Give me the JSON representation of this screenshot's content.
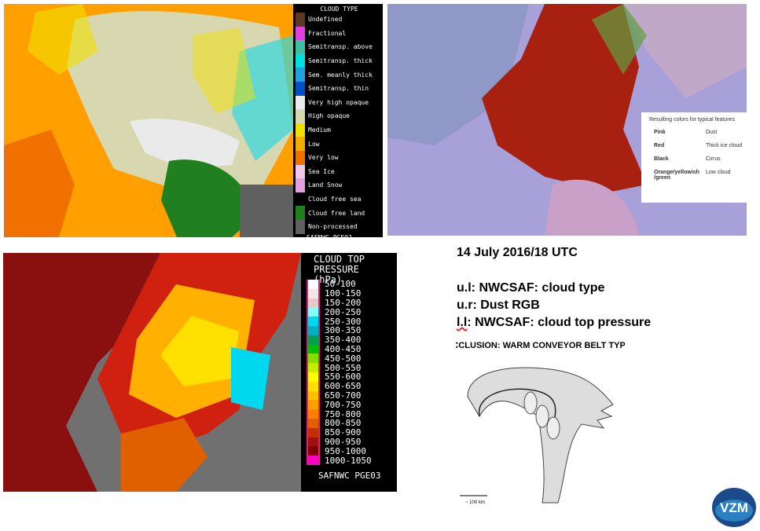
{
  "upper_left": {
    "legend_title": "CLOUD TYPE",
    "items": [
      {
        "label": "Undefined",
        "color": "#5a3a22"
      },
      {
        "label": "Fractional",
        "color": "#e040e0"
      },
      {
        "label": "Semitransp. above",
        "color": "#40c0a0"
      },
      {
        "label": "Semitransp. thick",
        "color": "#00e0e0"
      },
      {
        "label": "Sem. meanly thick",
        "color": "#20a0e0"
      },
      {
        "label": "Semitransp. thin",
        "color": "#0050c8"
      },
      {
        "label": "Very high opaque",
        "color": "#ececec"
      },
      {
        "label": "High opaque",
        "color": "#d8d8b0"
      },
      {
        "label": "Medium",
        "color": "#f0e000"
      },
      {
        "label": "Low",
        "color": "#f0b000"
      },
      {
        "label": "Very low",
        "color": "#f07000"
      },
      {
        "label": "Sea Ice",
        "color": "#f0c8e8"
      },
      {
        "label": "Land Snow",
        "color": "#e0a0e0"
      },
      {
        "label": "Cloud free sea",
        "color": "#000000"
      },
      {
        "label": "Cloud free land",
        "color": "#208020"
      },
      {
        "label": "Non-processed",
        "color": "#606060"
      }
    ],
    "footer": "SAFNWC PGE02"
  },
  "upper_right": {
    "table_title": "Resulting colors for typical features",
    "rows": [
      [
        "Pink",
        "Dust"
      ],
      [
        "Red",
        "Thick ice cloud"
      ],
      [
        "Black",
        "Cirrus"
      ],
      [
        "Orange/yellowish /green",
        "Low cloud"
      ]
    ]
  },
  "lower_left": {
    "legend_title": "CLOUD TOP PRESSURE (hPa)",
    "items": [
      {
        "label": "50-100",
        "color": "#ffffff"
      },
      {
        "label": "100-150",
        "color": "#f4e6e6"
      },
      {
        "label": "150-200",
        "color": "#e8c8c8"
      },
      {
        "label": "200-250",
        "color": "#80ffff"
      },
      {
        "label": "250-300",
        "color": "#00d8f0"
      },
      {
        "label": "300-350",
        "color": "#00b0c0"
      },
      {
        "label": "350-400",
        "color": "#00a050"
      },
      {
        "label": "400-450",
        "color": "#00c000"
      },
      {
        "label": "450-500",
        "color": "#80e000"
      },
      {
        "label": "500-550",
        "color": "#c0f000"
      },
      {
        "label": "550-600",
        "color": "#ffff00"
      },
      {
        "label": "600-650",
        "color": "#ffe000"
      },
      {
        "label": "650-700",
        "color": "#ffc000"
      },
      {
        "label": "700-750",
        "color": "#ffa000"
      },
      {
        "label": "750-800",
        "color": "#ff8000"
      },
      {
        "label": "800-850",
        "color": "#e06000"
      },
      {
        "label": "850-900",
        "color": "#c03000"
      },
      {
        "label": "900-950",
        "color": "#a01010"
      },
      {
        "label": "950-1000",
        "color": "#800000"
      },
      {
        "label": "1000-1050",
        "color": "#ff00c0"
      }
    ],
    "footer": "SAFNWC PGE03"
  },
  "info": {
    "date": "14 July 2016/18 UTC",
    "lines": [
      [
        "u.l",
        ": NWCSAF: cloud type"
      ],
      [
        "u.r",
        ": Dust RGB"
      ],
      [
        "l.l",
        ": NWCSAF: cloud top pressure"
      ]
    ]
  },
  "diagram": {
    "title": "OCCLUSION: WARM CONVEYOR BELT TYPE",
    "scale": "~ 100 km"
  },
  "logo": "VZM"
}
